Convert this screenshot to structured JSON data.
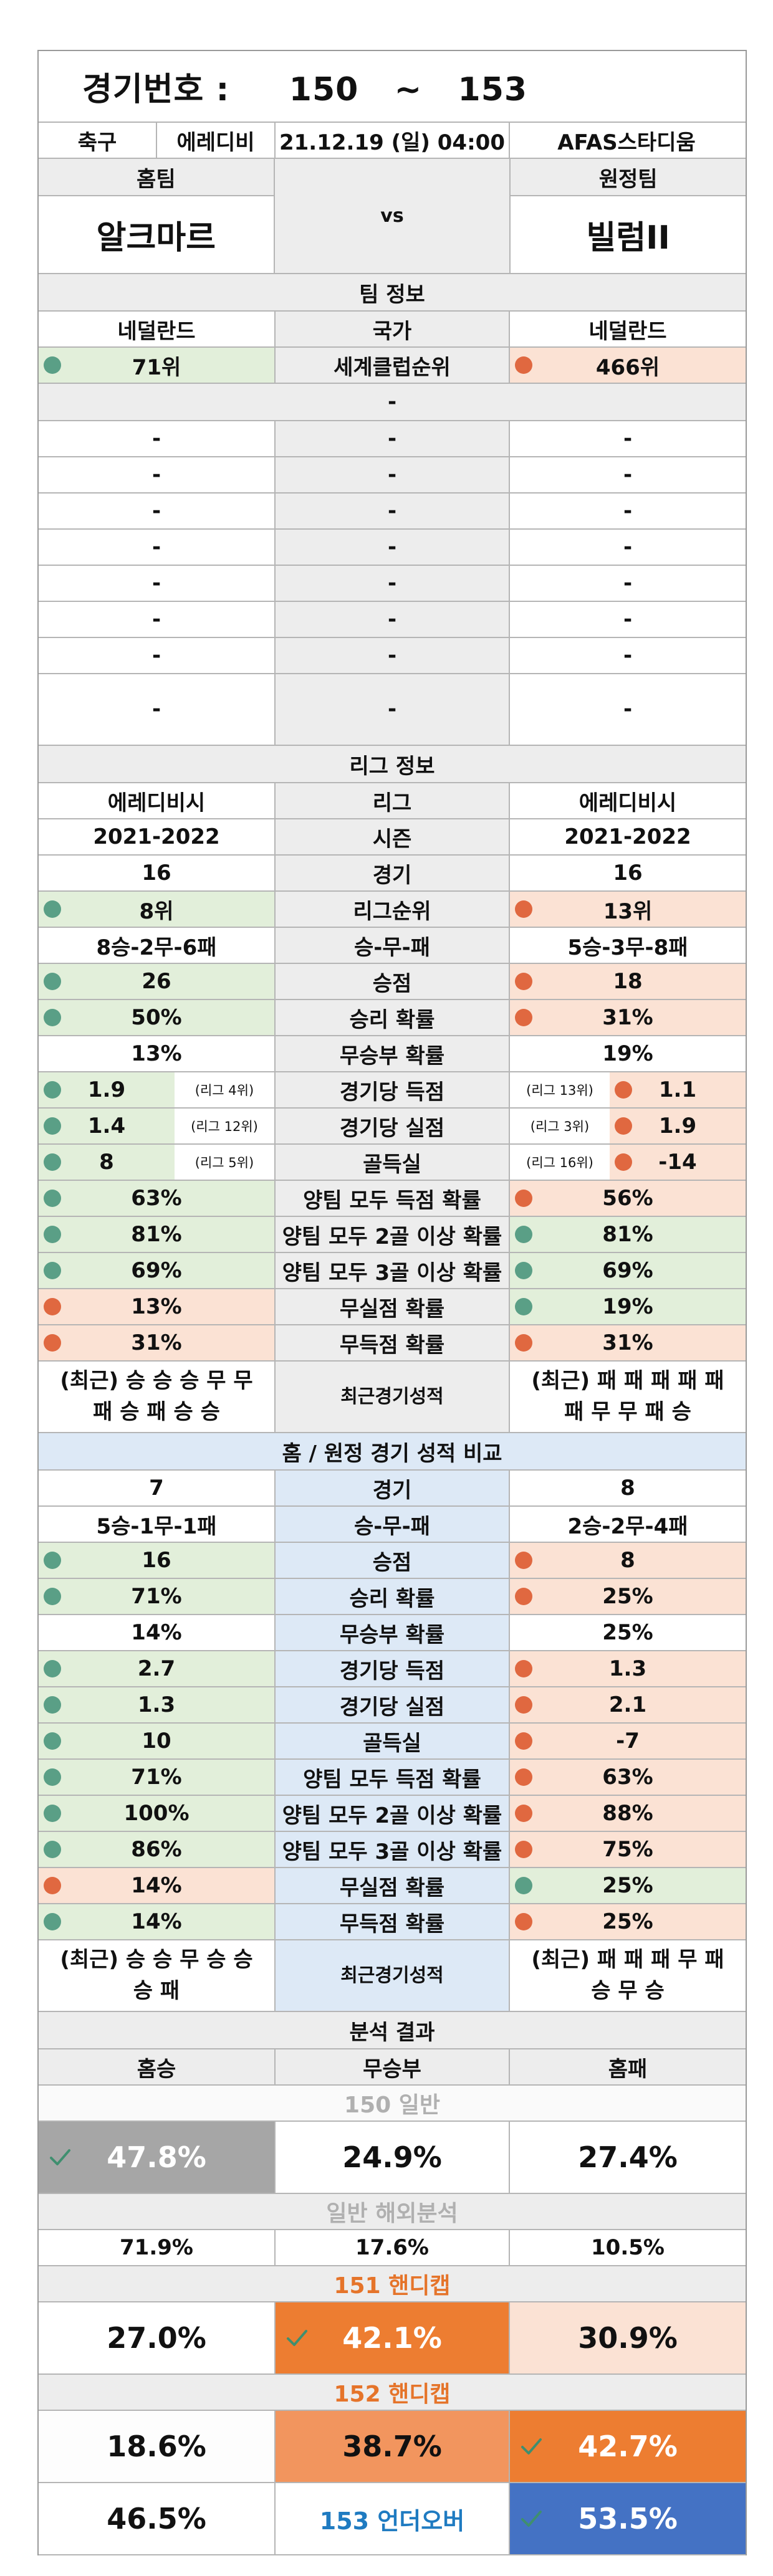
{
  "match": {
    "title": "경기번호 :     150   ~   153",
    "sport": "축구",
    "league": "에레디비",
    "datetime": "21.12.19 (일) 04:00",
    "venue": "AFAS스타디움",
    "home_label": "홈팀",
    "away_label": "원정팀",
    "home_team": "알크마르",
    "away_team": "빌럼II",
    "vs": "vs"
  },
  "team_info": {
    "section": "팀 정보",
    "country_home": "네덜란드",
    "country_label": "국가",
    "country_away": "네덜란드",
    "rank_home": "71위",
    "rank_label": "세계클럽순위",
    "rank_away": "466위",
    "dash": "-"
  },
  "league_info": {
    "section": "리그 정보",
    "league_home": "에레디비시",
    "league_label": "리그",
    "league_away": "에레디비시",
    "season_home": "2021-2022",
    "season_label": "시즌",
    "season_away": "2021-2022",
    "rows": [
      {
        "home": "16",
        "label": "경기",
        "away": "16"
      },
      {
        "home": "8위",
        "label": "리그순위",
        "away": "13위"
      },
      {
        "home": "8승-2무-6패",
        "label": "승-무-패",
        "away": "5승-3무-8패"
      },
      {
        "home": "26",
        "label": "승점",
        "away": "18"
      },
      {
        "home": "50%",
        "label": "승리 확률",
        "away": "31%"
      },
      {
        "home": "13%",
        "label": "무승부 확률",
        "away": "19%"
      },
      {
        "home": "1.9",
        "home_rank": "(리그 4위)",
        "label": "경기당 득점",
        "away": "1.1",
        "away_rank": "(리그 13위)"
      },
      {
        "home": "1.4",
        "home_rank": "(리그 12위)",
        "label": "경기당 실점",
        "away": "1.9",
        "away_rank": "(리그 3위)"
      },
      {
        "home": "8",
        "home_rank": "(리그 5위)",
        "label": "골득실",
        "away": "-14",
        "away_rank": "(리그 16위)"
      },
      {
        "home": "63%",
        "label": "양팀 모두 득점 확률",
        "away": "56%"
      },
      {
        "home": "81%",
        "label": "양팀 모두 2골 이상 확률",
        "away": "81%"
      },
      {
        "home": "69%",
        "label": "양팀 모두 3골 이상 확률",
        "away": "69%"
      },
      {
        "home": "13%",
        "label": "무실점 확률",
        "away": "19%"
      },
      {
        "home": "31%",
        "label": "무득점 확률",
        "away": "31%"
      }
    ],
    "recent_home_1": "(최근) 승 승 승 무 무",
    "recent_home_2": "패 승 패 승 승",
    "recent_label": "최근경기성적",
    "recent_away_1": "(최근) 패 패 패 패 패",
    "recent_away_2": "패 무 무 패 승"
  },
  "homeaway": {
    "section": "홈 / 원정 경기 성적 비교",
    "rows": [
      {
        "home": "7",
        "label": "경기",
        "away": "8"
      },
      {
        "home": "5승-1무-1패",
        "label": "승-무-패",
        "away": "2승-2무-4패"
      },
      {
        "home": "16",
        "label": "승점",
        "away": "8"
      },
      {
        "home": "71%",
        "label": "승리 확률",
        "away": "25%"
      },
      {
        "home": "14%",
        "label": "무승부 확률",
        "away": "25%"
      },
      {
        "home": "2.7",
        "label": "경기당 득점",
        "away": "1.3"
      },
      {
        "home": "1.3",
        "label": "경기당 실점",
        "away": "2.1"
      },
      {
        "home": "10",
        "label": "골득실",
        "away": "-7"
      },
      {
        "home": "71%",
        "label": "양팀 모두 득점 확률",
        "away": "63%"
      },
      {
        "home": "100%",
        "label": "양팀 모두 2골 이상 확률",
        "away": "88%"
      },
      {
        "home": "86%",
        "label": "양팀 모두 3골 이상 확률",
        "away": "75%"
      },
      {
        "home": "14%",
        "label": "무실점 확률",
        "away": "25%"
      },
      {
        "home": "14%",
        "label": "무득점 확률",
        "away": "25%"
      }
    ],
    "recent_home_1": "(최근) 승 승 무 승 승",
    "recent_home_2": "승 패",
    "recent_label": "최근경기성적",
    "recent_away_1": "(최근) 패 패 패 무 패",
    "recent_away_2": "승 무 승"
  },
  "analysis": {
    "section": "분석 결과",
    "col_home": "홈승",
    "col_draw": "무승부",
    "col_away": "홈패",
    "general_title": "150 일반",
    "general": [
      "47.8%",
      "24.9%",
      "27.4%"
    ],
    "overseas_title": "일반 해외분석",
    "overseas": [
      "71.9%",
      "17.6%",
      "10.5%"
    ],
    "h151_title": "151 핸디캡",
    "h151": [
      "27.0%",
      "42.1%",
      "30.9%"
    ],
    "h152_title": "152 핸디캡",
    "h152": [
      "18.6%",
      "38.7%",
      "42.7%"
    ],
    "uo_left": "46.5%",
    "uo_title": "153 언더오버",
    "uo_right": "53.5%"
  },
  "colors": {
    "green_bg": "#e2efda",
    "peach_bg": "#fbe2d4",
    "green_dot": "#5a9f86",
    "orange_dot": "#e06840",
    "blue_section": "#dde9f6",
    "orange_pick": "#ed7d31",
    "blue_pick": "#4472c4",
    "gray_pick": "#a6a6a6"
  }
}
